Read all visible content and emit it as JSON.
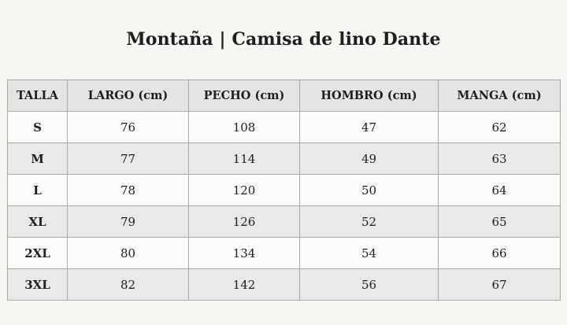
{
  "title": "Montaña | Camisa de lino Dante",
  "table": {
    "headers": [
      "TALLA",
      "LARGO (cm)",
      "PECHO (cm)",
      "HOMBRO (cm)",
      "MANGA (cm)"
    ],
    "rows": [
      [
        "S",
        "76",
        "108",
        "47",
        "62"
      ],
      [
        "M",
        "77",
        "114",
        "49",
        "63"
      ],
      [
        "L",
        "78",
        "120",
        "50",
        "64"
      ],
      [
        "XL",
        "79",
        "126",
        "52",
        "65"
      ],
      [
        "2XL",
        "80",
        "134",
        "54",
        "66"
      ],
      [
        "3XL",
        "82",
        "142",
        "56",
        "67"
      ]
    ]
  },
  "colors": {
    "background": "#f6f6f3",
    "header_fill": "#e4e4e4",
    "row_light": "#fbfbf9",
    "row_shaded": "#e9e9e7",
    "border": "#a9a9a9",
    "text": "#1e1e1e"
  }
}
